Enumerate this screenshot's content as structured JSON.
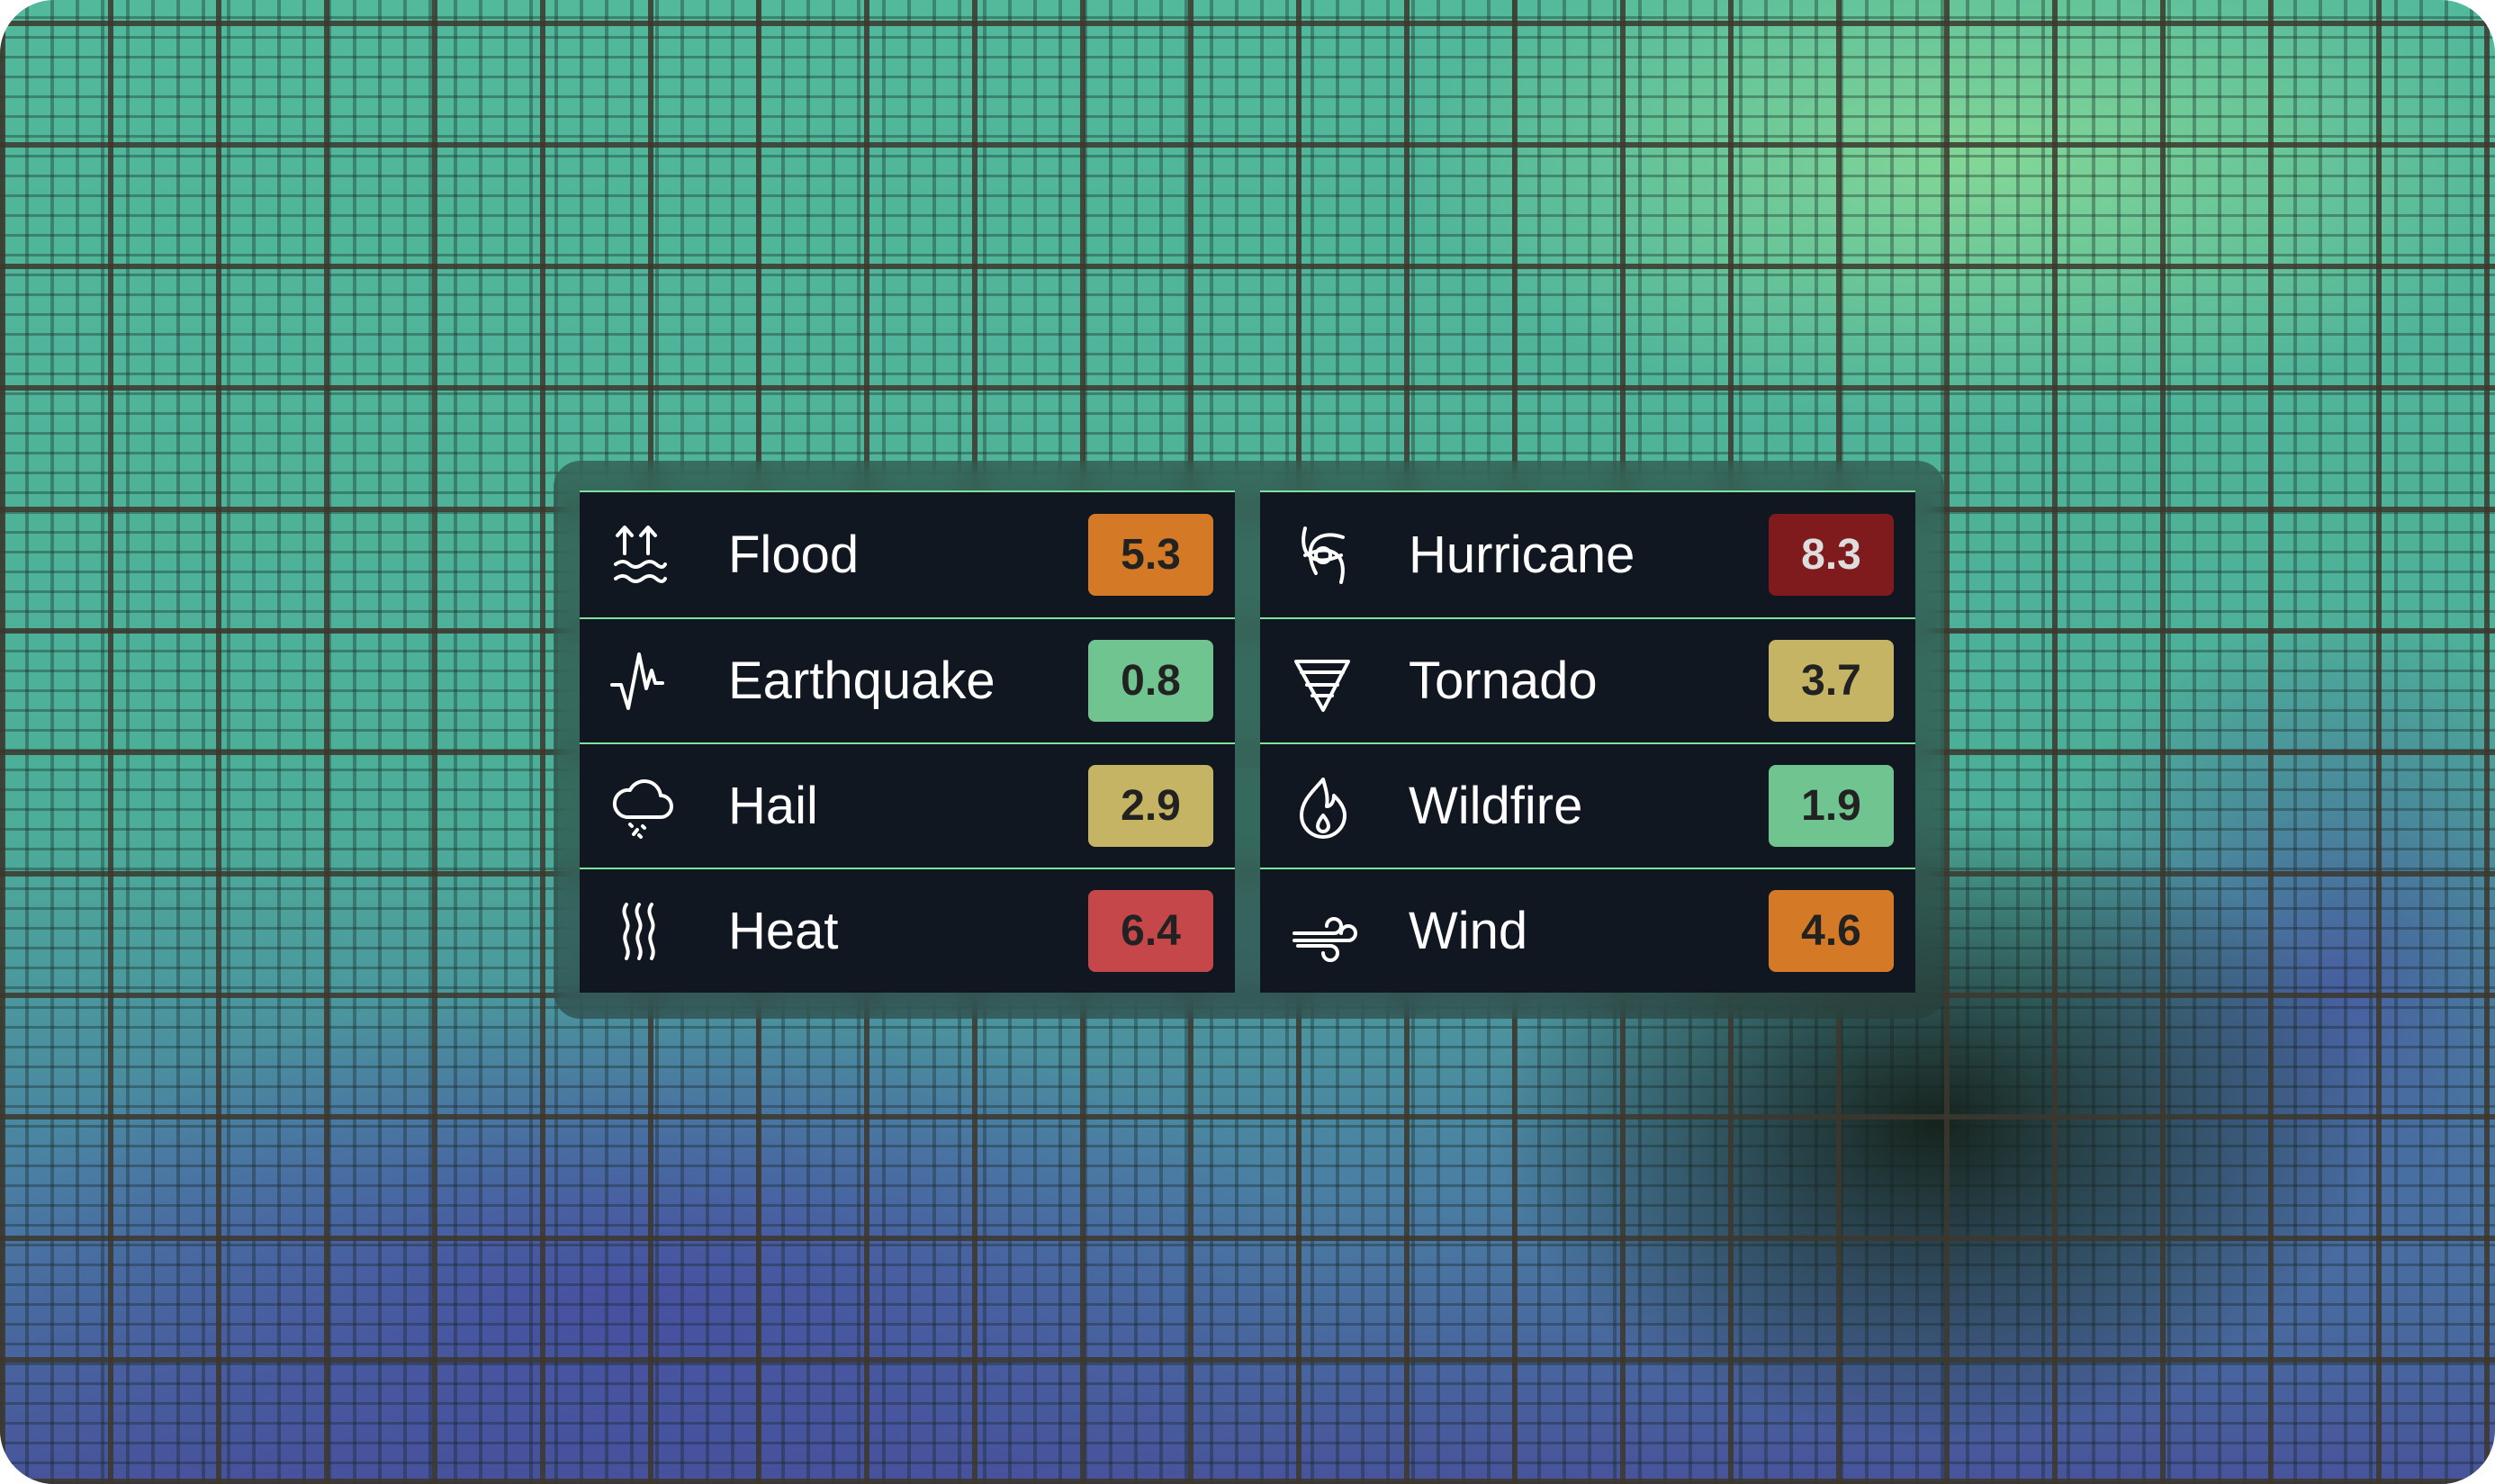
{
  "left_card": [
    {
      "icon": "flood-icon",
      "label": "Flood",
      "score": "5.3",
      "color": "#d47a26",
      "text_color": "#222222"
    },
    {
      "icon": "earthquake-icon",
      "label": "Earthquake",
      "score": "0.8",
      "color": "#70c48f",
      "text_color": "#222222"
    },
    {
      "icon": "hail-icon",
      "label": "Hail",
      "score": "2.9",
      "color": "#c5b464",
      "text_color": "#222222"
    },
    {
      "icon": "heat-icon",
      "label": "Heat",
      "score": "6.4",
      "color": "#c5474a",
      "text_color": "#222222"
    }
  ],
  "right_card": [
    {
      "icon": "hurricane-icon",
      "label": "Hurricane",
      "score": "8.3",
      "color": "#7f1b1d",
      "text_color": "#dddddd"
    },
    {
      "icon": "tornado-icon",
      "label": "Tornado",
      "score": "3.7",
      "color": "#c5b464",
      "text_color": "#222222"
    },
    {
      "icon": "wildfire-icon",
      "label": "Wildfire",
      "score": "1.9",
      "color": "#70c48f",
      "text_color": "#222222"
    },
    {
      "icon": "wind-icon",
      "label": "Wind",
      "score": "4.6",
      "color": "#d47a26",
      "text_color": "#222222"
    }
  ],
  "accent_divider_color": "#7ee39a"
}
